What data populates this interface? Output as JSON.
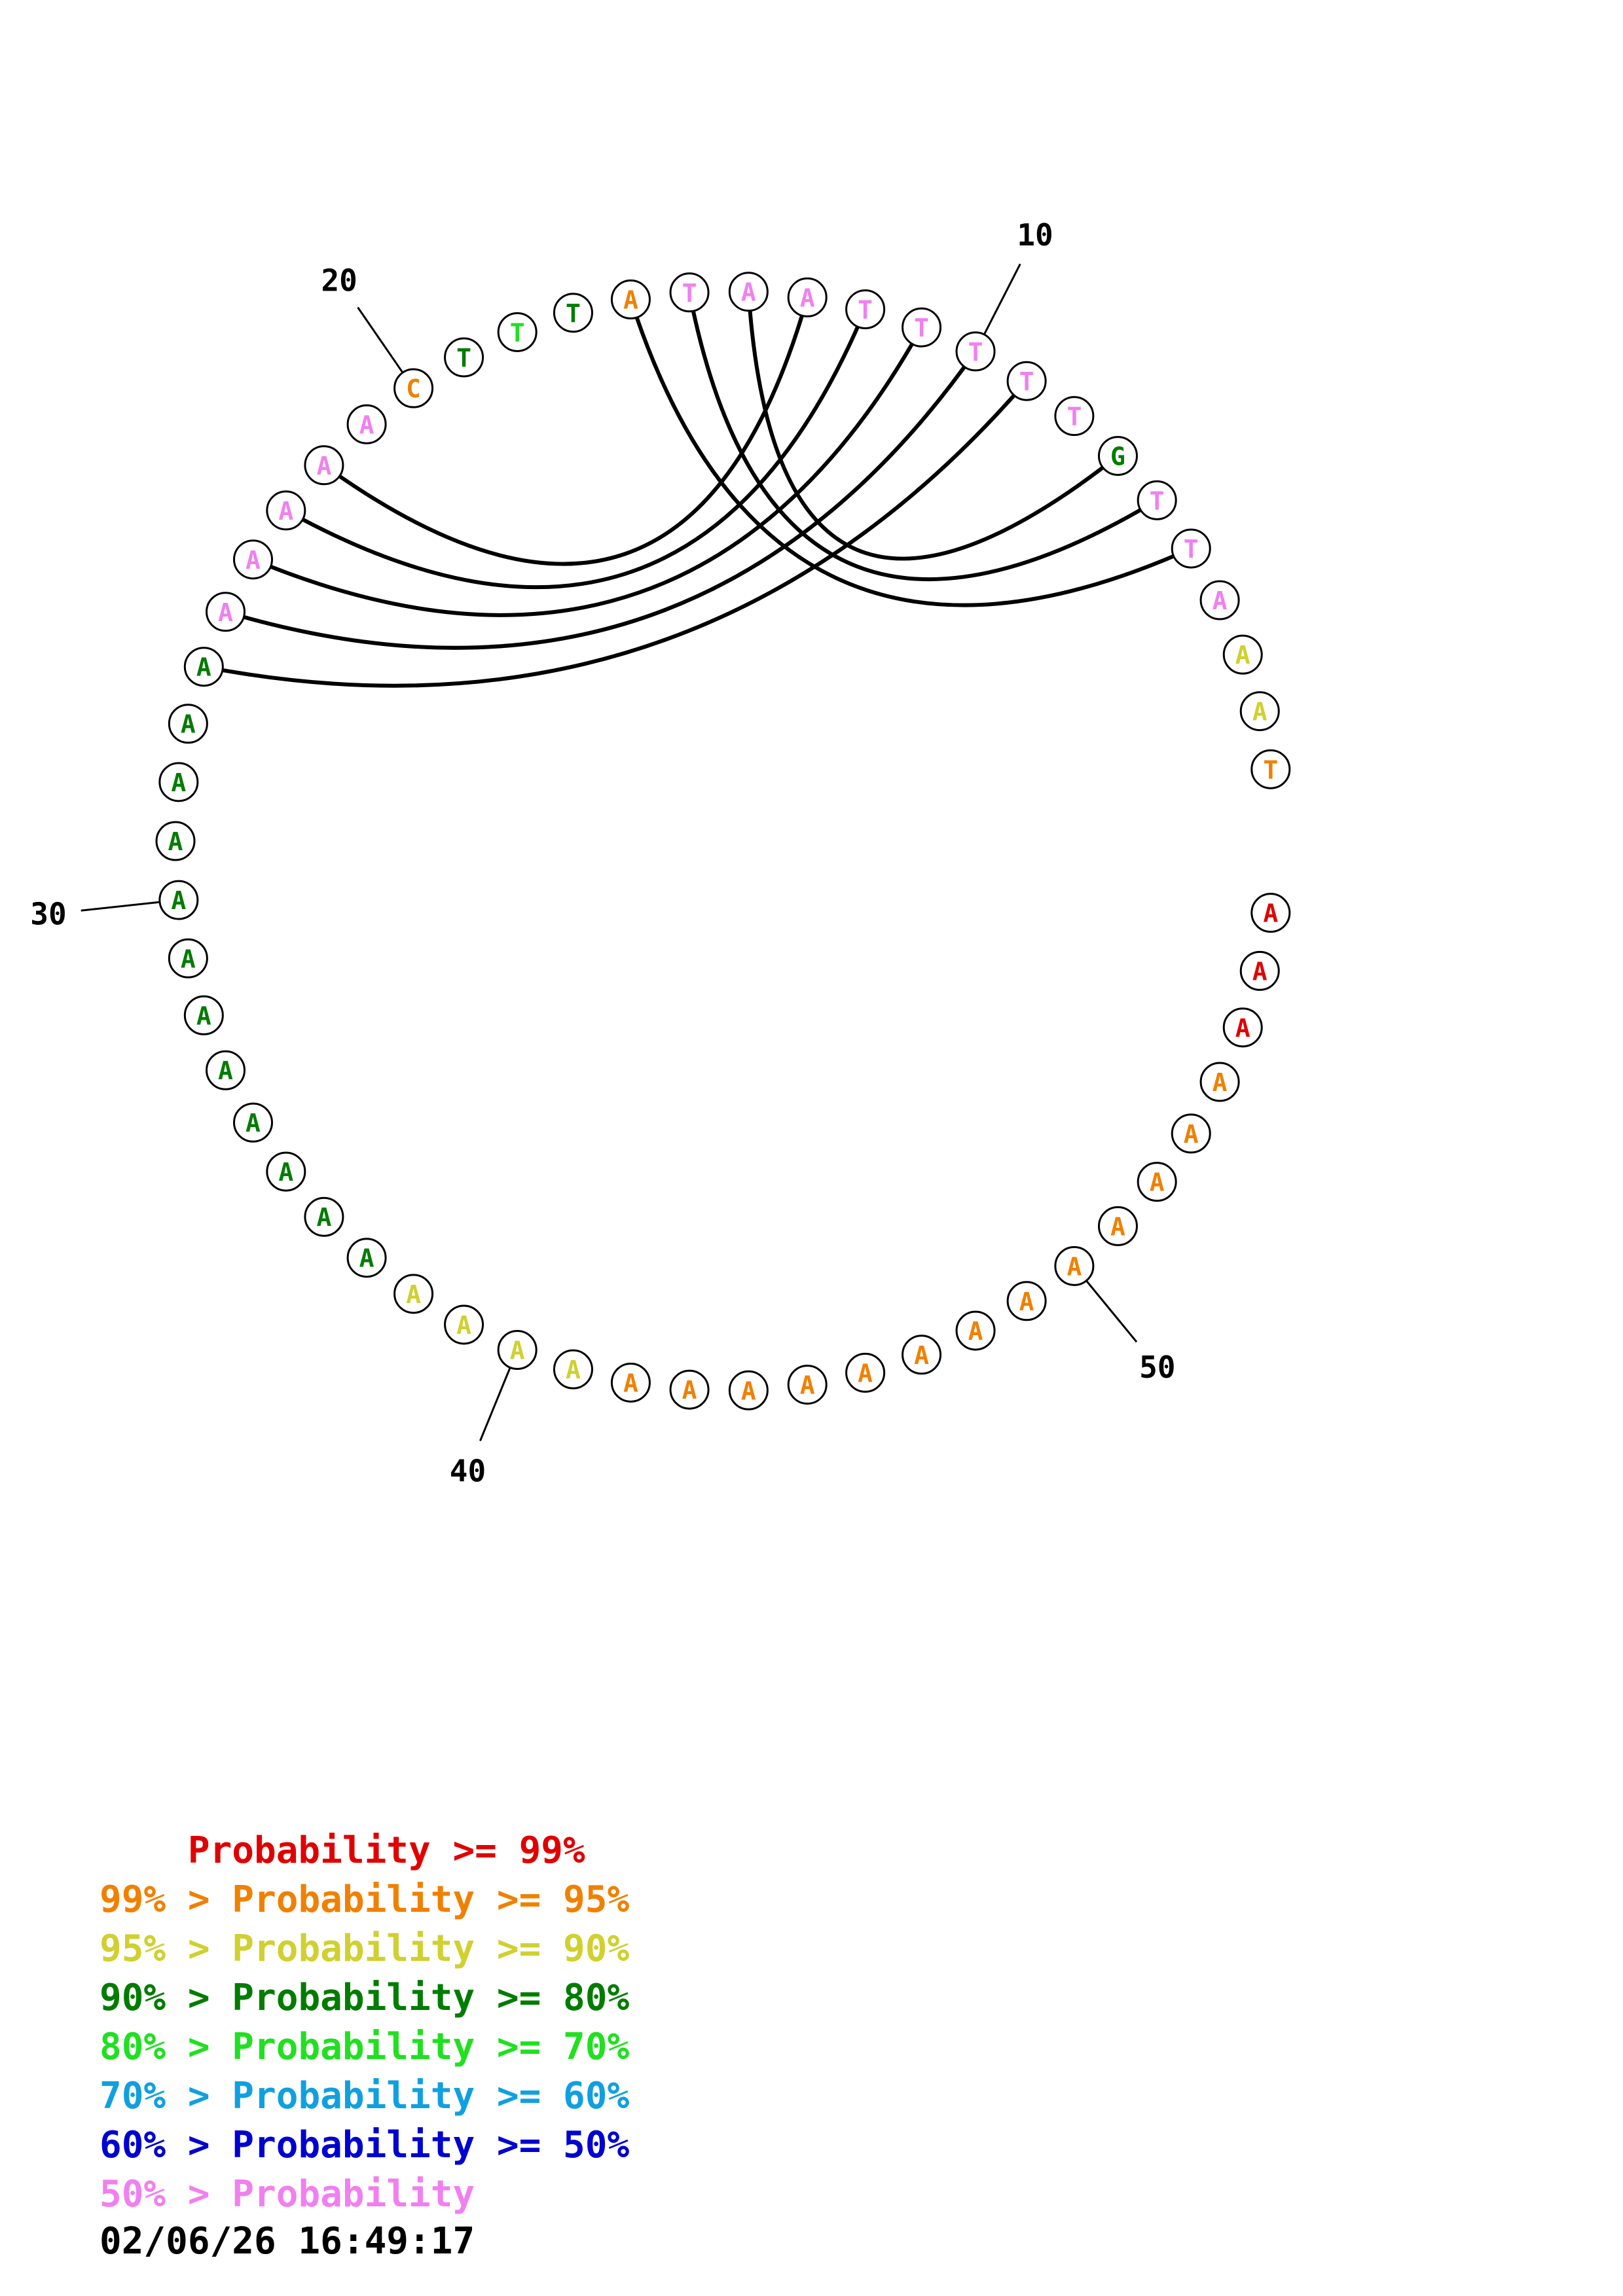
{
  "diagram": {
    "sequence": [
      "T",
      "A",
      "A",
      "A",
      "T",
      "T",
      "G",
      "T",
      "T",
      "T",
      "T",
      "T",
      "A",
      "A",
      "T",
      "A",
      "T",
      "T",
      "T",
      "C",
      "A",
      "A",
      "A",
      "A",
      "A",
      "A",
      "A",
      "A",
      "A",
      "A",
      "A",
      "A",
      "A",
      "A",
      "A",
      "A",
      "A",
      "A",
      "A",
      "A",
      "A",
      "A",
      "A",
      "A",
      "A",
      "A",
      "A",
      "A",
      "A",
      "A",
      "A",
      "A",
      "A",
      "A",
      "A",
      "A",
      "A"
    ],
    "probability_class": [
      1,
      2,
      2,
      7,
      7,
      7,
      3,
      7,
      7,
      7,
      7,
      7,
      7,
      7,
      7,
      1,
      3,
      4,
      3,
      1,
      7,
      7,
      7,
      7,
      7,
      3,
      3,
      3,
      3,
      3,
      3,
      3,
      3,
      3,
      3,
      3,
      3,
      2,
      2,
      2,
      2,
      1,
      1,
      1,
      1,
      1,
      1,
      1,
      1,
      1,
      1,
      1,
      1,
      1,
      0,
      0,
      0
    ],
    "class_colors": [
      "#e00000",
      "#f08000",
      "#d0d030",
      "#007c00",
      "#20e020",
      "#10a0e0",
      "#0000d0",
      "#f080f0"
    ],
    "base_pairs": [
      [
        4,
        15
      ],
      [
        5,
        14
      ],
      [
        6,
        13
      ],
      [
        8,
        25
      ],
      [
        9,
        24
      ],
      [
        10,
        23
      ],
      [
        11,
        22
      ],
      [
        12,
        21
      ]
    ],
    "position_labels": [
      {
        "index": 10,
        "text": "10"
      },
      {
        "index": 20,
        "text": "20"
      },
      {
        "index": 30,
        "text": "30"
      },
      {
        "index": 40,
        "text": "40"
      },
      {
        "index": 50,
        "text": "50"
      }
    ]
  },
  "legend": [
    {
      "prefix": "    ",
      "text": "Probability >= 99%",
      "color": "#e00000"
    },
    {
      "prefix": "99% > ",
      "text": "Probability >= 95%",
      "color": "#f08000"
    },
    {
      "prefix": "95% > ",
      "text": "Probability >= 90%",
      "color": "#d0d030"
    },
    {
      "prefix": "90% > ",
      "text": "Probability >= 80%",
      "color": "#007c00"
    },
    {
      "prefix": "80% > ",
      "text": "Probability >= 70%",
      "color": "#20e020"
    },
    {
      "prefix": "70% > ",
      "text": "Probability >= 60%",
      "color": "#10a0e0"
    },
    {
      "prefix": "60% > ",
      "text": "Probability >= 50%",
      "color": "#0000d0"
    },
    {
      "prefix": "50% > ",
      "text": "Probability",
      "color": "#f080f0"
    }
  ],
  "timestamp": "02/06/26 16:49:17"
}
